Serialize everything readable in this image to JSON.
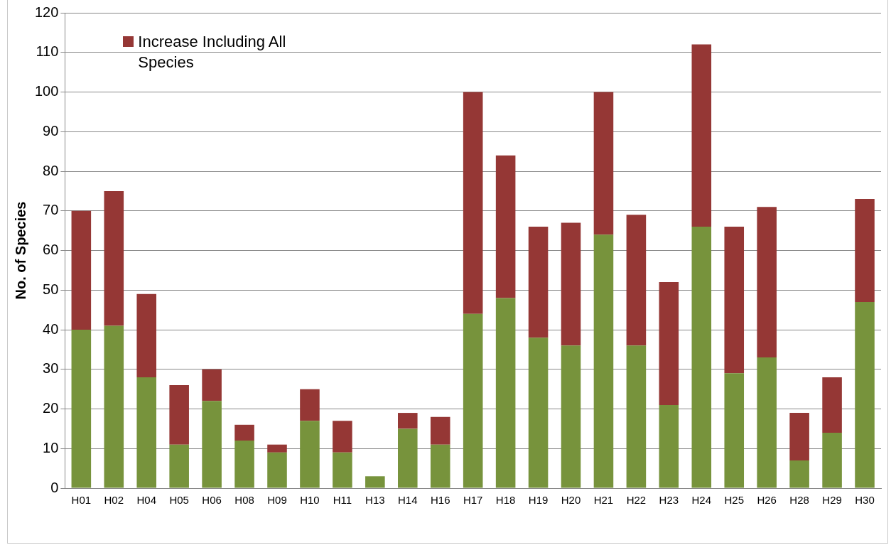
{
  "chart_data": {
    "type": "bar",
    "stacked": true,
    "ylabel": "No. of Species",
    "categories": [
      "H01",
      "H02",
      "H04",
      "H05",
      "H06",
      "H08",
      "H09",
      "H10",
      "H11",
      "H13",
      "H14",
      "H16",
      "H17",
      "H18",
      "H19",
      "H20",
      "H21",
      "H22",
      "H23",
      "H24",
      "H25",
      "H26",
      "H28",
      "H29",
      "H30"
    ],
    "series": [
      {
        "color": "#77933c",
        "values": [
          40,
          41,
          28,
          11,
          22,
          12,
          9,
          17,
          9,
          3,
          15,
          11,
          44,
          48,
          38,
          36,
          64,
          36,
          21,
          66,
          29,
          33,
          7,
          14,
          47
        ]
      },
      {
        "name": "Increase Including All Species",
        "color": "#953735",
        "values": [
          30,
          34,
          21,
          15,
          8,
          4,
          2,
          8,
          8,
          0,
          4,
          7,
          56,
          36,
          28,
          31,
          36,
          33,
          31,
          46,
          37,
          38,
          12,
          14,
          26
        ]
      }
    ],
    "ylim": [
      0,
      120
    ],
    "yticks": [
      0,
      10,
      20,
      30,
      40,
      50,
      60,
      70,
      80,
      90,
      100,
      110,
      120
    ],
    "grid": "y",
    "legend": "top left"
  }
}
